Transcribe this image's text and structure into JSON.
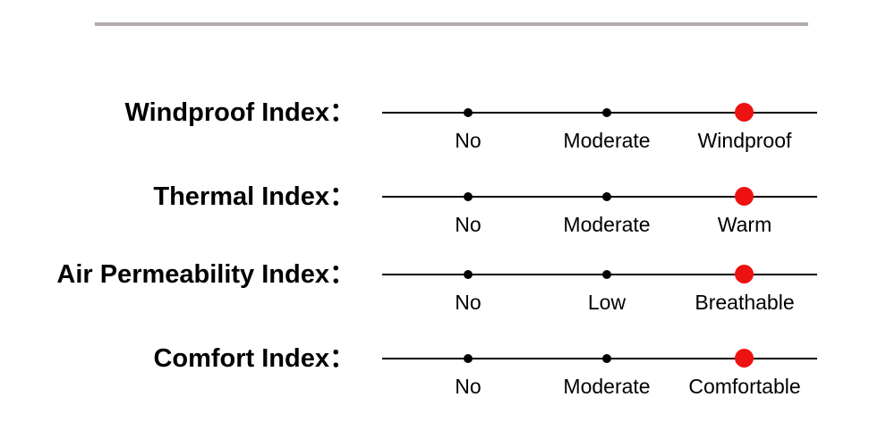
{
  "page": {
    "background": "#ffffff",
    "divider_color": "#b3abab"
  },
  "colors": {
    "active_dot": "#ee1111",
    "inactive_dot": "#000000",
    "line": "#000000",
    "text": "#000000"
  },
  "rows": [
    {
      "label": "Windproof Index：",
      "ticks": [
        {
          "label": "No",
          "active": false
        },
        {
          "label": "Moderate",
          "active": false
        },
        {
          "label": "Windproof",
          "active": true
        }
      ]
    },
    {
      "label": "Thermal Index：",
      "ticks": [
        {
          "label": "No",
          "active": false
        },
        {
          "label": "Moderate",
          "active": false
        },
        {
          "label": "Warm",
          "active": true
        }
      ]
    },
    {
      "label": "Air Permeability Index：",
      "ticks": [
        {
          "label": "No",
          "active": false
        },
        {
          "label": "Low",
          "active": false
        },
        {
          "label": "Breathable",
          "active": true
        }
      ]
    },
    {
      "label": "Comfort Index：",
      "ticks": [
        {
          "label": "No",
          "active": false
        },
        {
          "label": "Moderate",
          "active": false
        },
        {
          "label": "Comfortable",
          "active": true
        }
      ]
    }
  ],
  "chart_data": {
    "type": "scatter",
    "description": "Product attribute rating scales. Each horizontal line has three tick positions; a large red dot marks the product's rated level (the third/highest tick on every scale), small black dots mark the unselected levels.",
    "series": [
      {
        "name": "Windproof Index",
        "categories": [
          "No",
          "Moderate",
          "Windproof"
        ],
        "selected": "Windproof",
        "selected_index": 2
      },
      {
        "name": "Thermal Index",
        "categories": [
          "No",
          "Moderate",
          "Warm"
        ],
        "selected": "Warm",
        "selected_index": 2
      },
      {
        "name": "Air Permeability Index",
        "categories": [
          "No",
          "Low",
          "Breathable"
        ],
        "selected": "Breathable",
        "selected_index": 2
      },
      {
        "name": "Comfort Index",
        "categories": [
          "No",
          "Moderate",
          "Comfortable"
        ],
        "selected": "Comfortable",
        "selected_index": 2
      }
    ],
    "legend": "none",
    "grid": false
  }
}
